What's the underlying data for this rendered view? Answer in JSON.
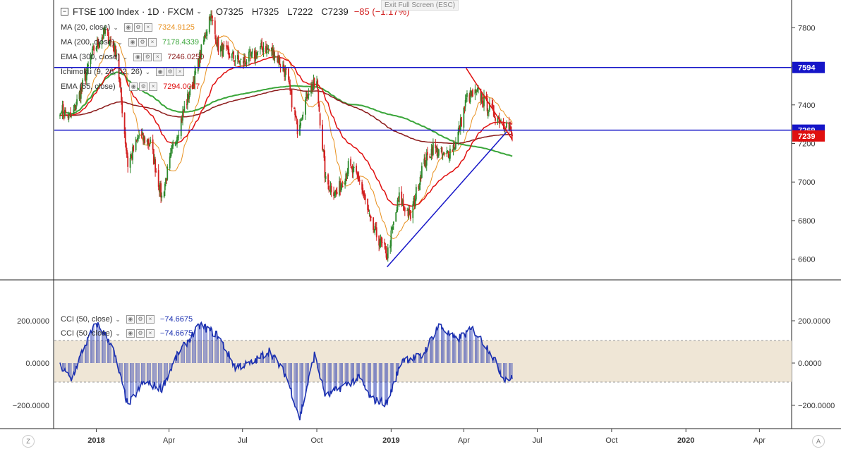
{
  "header": {
    "symbol": "FTSE 100 Index",
    "interval": "1D",
    "source": "FXCM",
    "open": "O7325",
    "high": "H7325",
    "low": "L7222",
    "close": "C7239",
    "change": "−85 (−1.17%)",
    "exit_fullscreen": "Exit Full Screen (ESC)"
  },
  "indicators": [
    {
      "name": "MA (20, close)",
      "value": "7324.9125",
      "color": "#e8901e"
    },
    {
      "name": "MA (200, close)",
      "value": "7178.4339",
      "color": "#3aa63a"
    },
    {
      "name": "EMA (300, close)",
      "value": "7246.0250",
      "color": "#8b1a1a"
    },
    {
      "name": "Ichimoku (9, 26, 52, 26)",
      "value": "",
      "color": "#1e5adc"
    },
    {
      "name": "EMA (55, close)",
      "value": "7294.0067",
      "color": "#e01010"
    }
  ],
  "cci_indicators": [
    {
      "name": "CCI (50, close)",
      "value": "−74.6675"
    },
    {
      "name": "CCI (50, close)",
      "value": "−74.6675"
    }
  ],
  "price_axis": {
    "ticks": [
      "7800",
      "7600",
      "7400",
      "7200",
      "7000",
      "6800",
      "6600"
    ],
    "tick_values": [
      7800,
      7600,
      7400,
      7200,
      7000,
      6800,
      6600
    ],
    "min": 6500,
    "max": 7900
  },
  "price_labels": [
    {
      "text": "7594",
      "value": 7594,
      "color": "#1515c8"
    },
    {
      "text": "7269",
      "value": 7269,
      "color": "#1515c8"
    },
    {
      "text": "7239",
      "value": 7239,
      "color": "#e01010"
    }
  ],
  "cci_axis": {
    "ticks": [
      "200.0000",
      "0.0000",
      "−200.0000"
    ],
    "tick_values": [
      200,
      0,
      -200
    ],
    "band": [
      100,
      -100
    ],
    "min": -300,
    "max": 250
  },
  "time_axis": {
    "labels": [
      "2018",
      "Apr",
      "Jul",
      "Oct",
      "2019",
      "Apr",
      "Jul",
      "Oct",
      "2020",
      "Apr"
    ],
    "bold": [
      true,
      false,
      false,
      false,
      true,
      false,
      false,
      false,
      true,
      false
    ]
  },
  "buttons": {
    "log": "Z",
    "auto": "A"
  },
  "colors": {
    "up": "#2d8a2d",
    "down": "#d22020",
    "cci": "#1a2fb0",
    "band": "#efe6d6"
  },
  "chart_data": {
    "type": "candlestick",
    "title": "FTSE 100 Index · 1D · FXCM",
    "y_range": [
      6500,
      7900
    ],
    "horizontal_lines": [
      7594,
      7269
    ],
    "trendlines": [
      {
        "from": [
          "2018-12-27",
          6560
        ],
        "to": [
          "2019-05-24",
          7260
        ],
        "color": "#1515c8"
      },
      {
        "from": [
          "2019-04-04",
          7590
        ],
        "to": [
          "2019-05-31",
          7220
        ],
        "color": "#e01010"
      }
    ],
    "path": [
      [
        "2017-11-17",
        7380
      ],
      [
        "2017-12-01",
        7330
      ],
      [
        "2017-12-15",
        7500
      ],
      [
        "2017-12-29",
        7690
      ],
      [
        "2018-01-12",
        7780
      ],
      [
        "2018-01-26",
        7670
      ],
      [
        "2018-02-09",
        7090
      ],
      [
        "2018-02-23",
        7240
      ],
      [
        "2018-03-09",
        7200
      ],
      [
        "2018-03-23",
        6920
      ],
      [
        "2018-04-06",
        7180
      ],
      [
        "2018-04-20",
        7380
      ],
      [
        "2018-05-04",
        7560
      ],
      [
        "2018-05-22",
        7870
      ],
      [
        "2018-06-01",
        7700
      ],
      [
        "2018-06-15",
        7660
      ],
      [
        "2018-06-29",
        7620
      ],
      [
        "2018-07-13",
        7650
      ],
      [
        "2018-07-27",
        7700
      ],
      [
        "2018-08-10",
        7670
      ],
      [
        "2018-08-24",
        7560
      ],
      [
        "2018-09-07",
        7280
      ],
      [
        "2018-09-21",
        7480
      ],
      [
        "2018-10-01",
        7510
      ],
      [
        "2018-10-12",
        7000
      ],
      [
        "2018-10-26",
        6940
      ],
      [
        "2018-11-09",
        7080
      ],
      [
        "2018-11-23",
        7010
      ],
      [
        "2018-12-07",
        6780
      ],
      [
        "2018-12-27",
        6620
      ],
      [
        "2019-01-11",
        6920
      ],
      [
        "2019-01-25",
        6820
      ],
      [
        "2019-02-08",
        7070
      ],
      [
        "2019-02-22",
        7180
      ],
      [
        "2019-03-08",
        7130
      ],
      [
        "2019-03-22",
        7200
      ],
      [
        "2019-04-05",
        7440
      ],
      [
        "2019-04-19",
        7460
      ],
      [
        "2019-05-03",
        7380
      ],
      [
        "2019-05-17",
        7320
      ],
      [
        "2019-05-24",
        7300
      ],
      [
        "2019-05-31",
        7239
      ]
    ],
    "cci_path": [
      [
        "2017-11-17",
        -10
      ],
      [
        "2017-12-01",
        -80
      ],
      [
        "2017-12-15",
        60
      ],
      [
        "2018-01-01",
        190
      ],
      [
        "2018-01-20",
        90
      ],
      [
        "2018-02-09",
        -200
      ],
      [
        "2018-03-01",
        -90
      ],
      [
        "2018-03-23",
        -120
      ],
      [
        "2018-04-13",
        50
      ],
      [
        "2018-05-10",
        180
      ],
      [
        "2018-06-01",
        130
      ],
      [
        "2018-06-22",
        -20
      ],
      [
        "2018-07-13",
        0
      ],
      [
        "2018-08-03",
        60
      ],
      [
        "2018-08-24",
        -60
      ],
      [
        "2018-09-10",
        -260
      ],
      [
        "2018-09-28",
        40
      ],
      [
        "2018-10-12",
        -160
      ],
      [
        "2018-11-02",
        -110
      ],
      [
        "2018-11-23",
        -70
      ],
      [
        "2018-12-07",
        -170
      ],
      [
        "2018-12-27",
        -190
      ],
      [
        "2019-01-15",
        20
      ],
      [
        "2019-02-08",
        30
      ],
      [
        "2019-03-01",
        180
      ],
      [
        "2019-03-22",
        110
      ],
      [
        "2019-04-12",
        160
      ],
      [
        "2019-05-03",
        60
      ],
      [
        "2019-05-20",
        -70
      ],
      [
        "2019-05-31",
        -75
      ]
    ]
  }
}
